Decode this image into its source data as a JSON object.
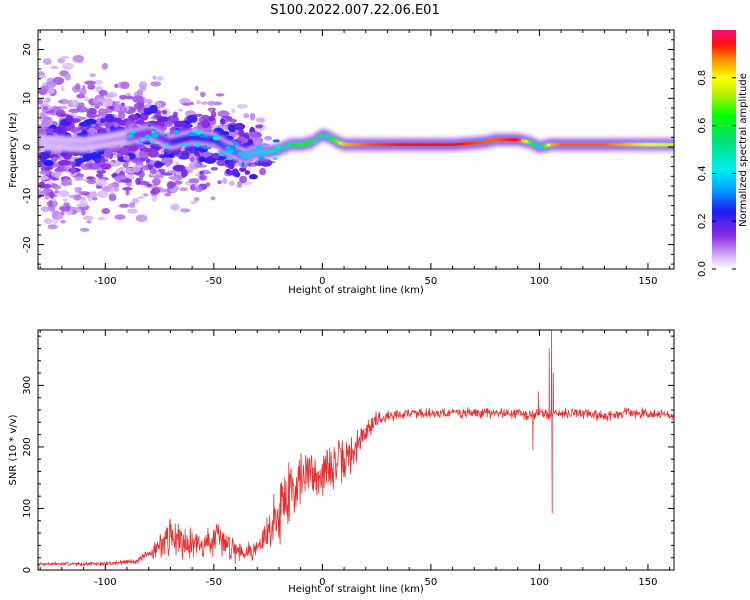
{
  "title": "S100.2022.007.22.06.E01",
  "colorbar": {
    "label": "Normalized spectral amplitude",
    "ticks": [
      "0.0",
      "0.2",
      "0.4",
      "0.6",
      "0.8"
    ],
    "colormap": "rainbow"
  },
  "chart_data": [
    {
      "type": "heatmap",
      "xlabel": "Height of straight line (km)",
      "ylabel": "Frequency (Hz)",
      "xlim": [
        -131,
        162
      ],
      "ylim": [
        -25,
        24
      ],
      "xticks": [
        "-100",
        "-50",
        "0",
        "50",
        "100",
        "150"
      ],
      "yticks": [
        "20",
        "10",
        "0",
        "-10",
        "-20"
      ],
      "ridge": {
        "x": [
          -131,
          -110,
          -90,
          -80,
          -70,
          -60,
          -50,
          -45,
          -40,
          -36,
          -33,
          -30,
          -25,
          -20,
          -15,
          -10,
          -5,
          0,
          3,
          7,
          10,
          20,
          40,
          60,
          75,
          80,
          90,
          95,
          100,
          105,
          110,
          120,
          130,
          140,
          150,
          162
        ],
        "y": [
          1,
          0.5,
          2,
          3,
          1,
          2,
          1.5,
          0,
          -1,
          -2,
          -1.5,
          -1,
          -1,
          -0.5,
          0.5,
          0.5,
          1,
          2.5,
          2,
          1,
          0.5,
          0.5,
          0.5,
          0.5,
          1,
          1.5,
          1.5,
          1,
          0,
          0.5,
          0.5,
          0.5,
          0.5,
          0.5,
          0.5,
          0.5
        ],
        "amplitude": [
          0.05,
          0.08,
          0.12,
          0.18,
          0.22,
          0.25,
          0.25,
          0.3,
          0.35,
          0.4,
          0.4,
          0.4,
          0.45,
          0.55,
          0.6,
          0.65,
          0.6,
          0.55,
          0.6,
          0.7,
          0.85,
          0.9,
          0.95,
          0.95,
          0.9,
          0.9,
          0.95,
          0.7,
          0.5,
          0.85,
          0.9,
          0.9,
          0.9,
          0.85,
          0.8,
          0.75
        ]
      }
    },
    {
      "type": "line",
      "xlabel": "Height of straight line (km)",
      "ylabel": "SNR (10 * v/v)",
      "xlim": [
        -131,
        162
      ],
      "ylim": [
        0,
        390
      ],
      "xticks": [
        "-100",
        "-50",
        "0",
        "50",
        "100",
        "150"
      ],
      "yticks": [
        "0",
        "100",
        "200",
        "300"
      ],
      "color": "#e83030",
      "series": [
        {
          "x": [
            -131,
            -100,
            -85,
            -80,
            -75,
            -70,
            -65,
            -60,
            -55,
            -50,
            -45,
            -40,
            -35,
            -30,
            -25,
            -20,
            -15,
            -10,
            -5,
            0,
            5,
            10,
            15,
            20,
            25,
            30,
            40,
            50,
            60,
            70,
            80,
            90,
            95,
            100,
            103,
            105,
            106,
            108,
            110,
            120,
            130,
            140,
            150,
            162
          ],
          "y": [
            10,
            10,
            15,
            25,
            40,
            55,
            50,
            45,
            40,
            50,
            45,
            35,
            30,
            35,
            60,
            100,
            130,
            150,
            160,
            155,
            170,
            175,
            195,
            225,
            245,
            250,
            255,
            255,
            255,
            255,
            255,
            255,
            250,
            255,
            255,
            250,
            255,
            255,
            255,
            255,
            250,
            255,
            255,
            250
          ]
        }
      ],
      "noise": [
        3,
        4,
        6,
        10,
        25,
        35,
        35,
        30,
        25,
        35,
        30,
        25,
        18,
        20,
        40,
        70,
        70,
        55,
        50,
        45,
        45,
        45,
        35,
        25,
        18,
        10,
        10,
        10,
        10,
        10,
        10,
        10,
        10,
        10,
        10,
        10,
        10,
        10,
        10,
        10,
        10,
        10,
        10,
        10
      ],
      "spikes": [
        {
          "x": 97,
          "y": 195
        },
        {
          "x": 99.5,
          "y": 290
        },
        {
          "x": 104.5,
          "y": 360
        },
        {
          "x": 105.6,
          "y": 390
        },
        {
          "x": 105.9,
          "y": 92
        },
        {
          "x": 106.4,
          "y": 320
        }
      ]
    }
  ]
}
